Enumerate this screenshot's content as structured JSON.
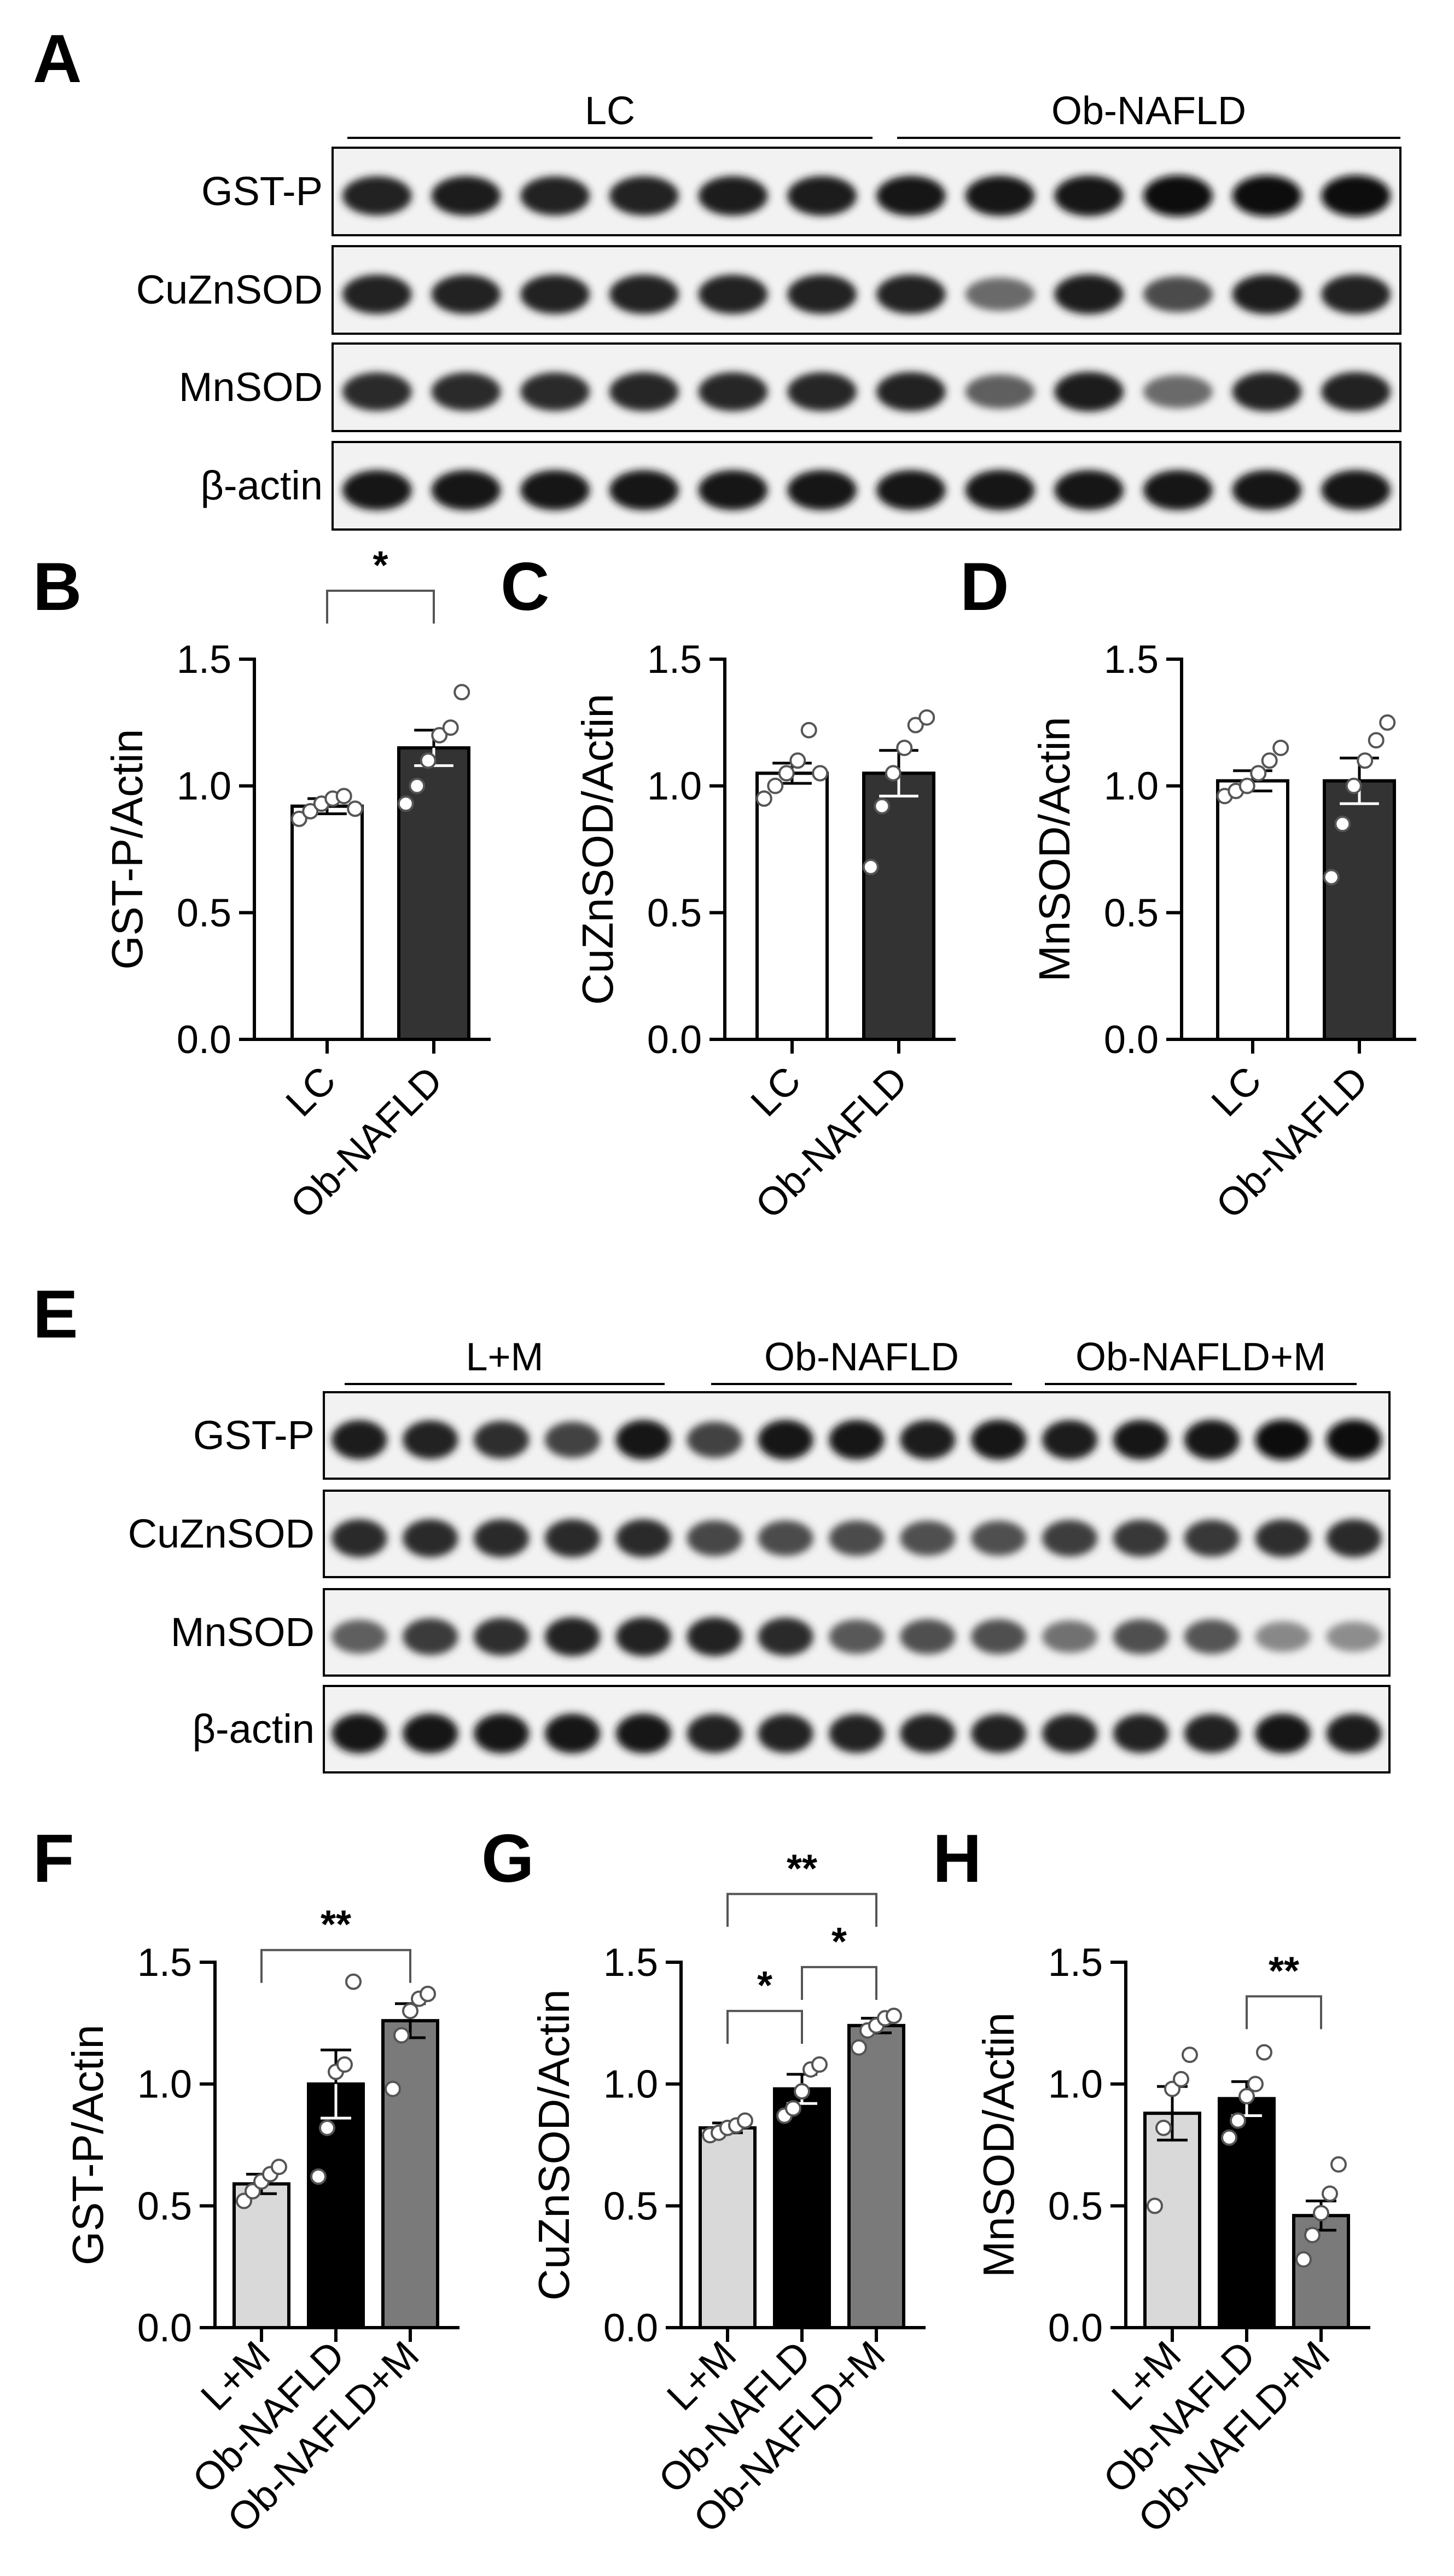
{
  "panel_letters": [
    "A",
    "B",
    "C",
    "D",
    "E",
    "F",
    "G",
    "H"
  ],
  "blot_A": {
    "groups": [
      "LC",
      "Ob-NAFLD"
    ],
    "rows": [
      "GST-P",
      "CuZnSOD",
      "MnSOD",
      "β-actin"
    ],
    "band_intensities": [
      [
        0.85,
        0.87,
        0.85,
        0.86,
        0.87,
        0.88,
        0.9,
        0.9,
        0.92,
        0.96,
        0.95,
        0.96
      ],
      [
        0.86,
        0.86,
        0.86,
        0.86,
        0.86,
        0.86,
        0.86,
        0.55,
        0.88,
        0.68,
        0.88,
        0.86
      ],
      [
        0.82,
        0.82,
        0.82,
        0.84,
        0.84,
        0.84,
        0.86,
        0.6,
        0.88,
        0.55,
        0.86,
        0.86
      ],
      [
        0.9,
        0.9,
        0.9,
        0.9,
        0.9,
        0.9,
        0.9,
        0.92,
        0.9,
        0.9,
        0.9,
        0.9
      ]
    ]
  },
  "blot_E": {
    "groups": [
      "L+M",
      "Ob-NAFLD",
      "Ob-NAFLD+M"
    ],
    "rows": [
      "GST-P",
      "CuZnSOD",
      "MnSOD",
      "β-actin"
    ],
    "band_intensities": [
      [
        0.88,
        0.85,
        0.8,
        0.72,
        0.9,
        0.72,
        0.9,
        0.9,
        0.88,
        0.92,
        0.88,
        0.9,
        0.92,
        0.94,
        0.94
      ],
      [
        0.82,
        0.82,
        0.82,
        0.82,
        0.82,
        0.7,
        0.68,
        0.68,
        0.66,
        0.66,
        0.74,
        0.76,
        0.76,
        0.8,
        0.82
      ],
      [
        0.6,
        0.75,
        0.8,
        0.86,
        0.86,
        0.86,
        0.82,
        0.62,
        0.66,
        0.66,
        0.52,
        0.66,
        0.64,
        0.42,
        0.4
      ],
      [
        0.9,
        0.9,
        0.9,
        0.9,
        0.9,
        0.86,
        0.86,
        0.86,
        0.86,
        0.86,
        0.86,
        0.86,
        0.86,
        0.9,
        0.88
      ]
    ]
  },
  "chart_data": [
    {
      "id": "B",
      "type": "bar",
      "categories": [
        "LC",
        "Ob-NAFLD"
      ],
      "values": [
        0.92,
        1.15
      ],
      "errors": [
        0.03,
        0.07
      ],
      "points": [
        [
          0.87,
          0.9,
          0.93,
          0.95,
          0.96,
          0.91
        ],
        [
          0.93,
          1.0,
          1.1,
          1.2,
          1.23,
          1.37
        ]
      ],
      "ylabel": "GST-P/Actin",
      "ylim": [
        0,
        1.5
      ],
      "yticks": [
        "0.0",
        "0.5",
        "1.0",
        "1.5"
      ],
      "colors": [
        "#ffffff",
        "#333333"
      ],
      "sig": [
        {
          "from": 0,
          "to": 1,
          "label": "*",
          "level": 1.77
        }
      ]
    },
    {
      "id": "C",
      "type": "bar",
      "categories": [
        "LC",
        "Ob-NAFLD"
      ],
      "values": [
        1.05,
        1.05
      ],
      "errors": [
        0.04,
        0.09
      ],
      "points": [
        [
          0.95,
          1.0,
          1.05,
          1.1,
          1.22,
          1.05
        ],
        [
          0.68,
          0.92,
          1.05,
          1.15,
          1.24,
          1.27
        ]
      ],
      "ylabel": "CuZnSOD/Actin",
      "ylim": [
        0,
        1.5
      ],
      "yticks": [
        "0.0",
        "0.5",
        "1.0",
        "1.5"
      ],
      "colors": [
        "#ffffff",
        "#333333"
      ],
      "sig": []
    },
    {
      "id": "D",
      "type": "bar",
      "categories": [
        "LC",
        "Ob-NAFLD"
      ],
      "values": [
        1.02,
        1.02
      ],
      "errors": [
        0.04,
        0.09
      ],
      "points": [
        [
          0.96,
          0.98,
          1.0,
          1.05,
          1.1,
          1.15
        ],
        [
          0.64,
          0.85,
          1.0,
          1.1,
          1.18,
          1.25
        ]
      ],
      "ylabel": "MnSOD/Actin",
      "ylim": [
        0,
        1.5
      ],
      "yticks": [
        "0.0",
        "0.5",
        "1.0",
        "1.5"
      ],
      "colors": [
        "#ffffff",
        "#333333"
      ],
      "sig": []
    },
    {
      "id": "F",
      "type": "bar",
      "categories": [
        "L+M",
        "Ob-NAFLD",
        "Ob-NAFLD+M"
      ],
      "values": [
        0.59,
        1.0,
        1.26
      ],
      "errors": [
        0.04,
        0.14,
        0.07
      ],
      "points": [
        [
          0.52,
          0.56,
          0.6,
          0.63,
          0.66
        ],
        [
          0.62,
          0.82,
          1.05,
          1.08,
          1.42
        ],
        [
          0.98,
          1.2,
          1.3,
          1.35,
          1.37
        ]
      ],
      "ylabel": "GST-P/Actin",
      "ylim": [
        0,
        1.5
      ],
      "yticks": [
        "0.0",
        "0.5",
        "1.0",
        "1.5"
      ],
      "colors": [
        "#d9d9d9",
        "#000000",
        "#7a7a7a"
      ],
      "sig": [
        {
          "from": 0,
          "to": 2,
          "label": "**",
          "level": 1.55
        }
      ]
    },
    {
      "id": "G",
      "type": "bar",
      "categories": [
        "L+M",
        "Ob-NAFLD",
        "Ob-NAFLD+M"
      ],
      "values": [
        0.82,
        0.98,
        1.24
      ],
      "errors": [
        0.02,
        0.06,
        0.03
      ],
      "points": [
        [
          0.79,
          0.8,
          0.82,
          0.83,
          0.85
        ],
        [
          0.87,
          0.9,
          0.97,
          1.06,
          1.08
        ],
        [
          1.15,
          1.22,
          1.24,
          1.27,
          1.28
        ]
      ],
      "ylabel": "CuZnSOD/Actin",
      "ylim": [
        0,
        1.5
      ],
      "yticks": [
        "0.0",
        "0.5",
        "1.0",
        "1.5"
      ],
      "colors": [
        "#d9d9d9",
        "#000000",
        "#7a7a7a"
      ],
      "sig": [
        {
          "from": 0,
          "to": 2,
          "label": "**",
          "level": 1.78
        },
        {
          "from": 0,
          "to": 1,
          "label": "*",
          "level": 1.3
        },
        {
          "from": 1,
          "to": 2,
          "label": "*",
          "level": 1.48
        }
      ]
    },
    {
      "id": "H",
      "type": "bar",
      "categories": [
        "L+M",
        "Ob-NAFLD",
        "Ob-NAFLD+M"
      ],
      "values": [
        0.88,
        0.94,
        0.46
      ],
      "errors": [
        0.11,
        0.07,
        0.06
      ],
      "points": [
        [
          0.5,
          0.82,
          0.98,
          1.02,
          1.12
        ],
        [
          0.78,
          0.85,
          0.95,
          1.0,
          1.13
        ],
        [
          0.28,
          0.38,
          0.47,
          0.55,
          0.67
        ]
      ],
      "ylabel": "MnSOD/Actin",
      "ylim": [
        0,
        1.5
      ],
      "yticks": [
        "0.0",
        "0.5",
        "1.0",
        "1.5"
      ],
      "colors": [
        "#d9d9d9",
        "#000000",
        "#7a7a7a"
      ],
      "sig": [
        {
          "from": 1,
          "to": 2,
          "label": "**",
          "level": 1.36
        }
      ]
    }
  ]
}
